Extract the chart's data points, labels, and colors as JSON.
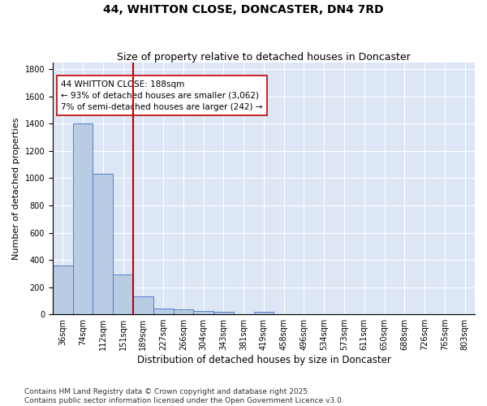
{
  "title": "44, WHITTON CLOSE, DONCASTER, DN4 7RD",
  "subtitle": "Size of property relative to detached houses in Doncaster",
  "xlabel": "Distribution of detached houses by size in Doncaster",
  "ylabel": "Number of detached properties",
  "categories": [
    "36sqm",
    "74sqm",
    "112sqm",
    "151sqm",
    "189sqm",
    "227sqm",
    "266sqm",
    "304sqm",
    "343sqm",
    "381sqm",
    "419sqm",
    "458sqm",
    "496sqm",
    "534sqm",
    "573sqm",
    "611sqm",
    "650sqm",
    "688sqm",
    "726sqm",
    "765sqm",
    "803sqm"
  ],
  "values": [
    360,
    1400,
    1035,
    290,
    130,
    45,
    35,
    25,
    18,
    0,
    20,
    0,
    0,
    0,
    0,
    0,
    0,
    0,
    0,
    0,
    0
  ],
  "bar_color": "#b8cce4",
  "bar_edge_color": "#4472c4",
  "property_line_index": 4,
  "property_line_color": "#c00000",
  "annotation_line1": "44 WHITTON CLOSE: 188sqm",
  "annotation_line2": "← 93% of detached houses are smaller (3,062)",
  "annotation_line3": "7% of semi-detached houses are larger (242) →",
  "annotation_box_color": "#c00000",
  "ylim": [
    0,
    1850
  ],
  "yticks": [
    0,
    200,
    400,
    600,
    800,
    1000,
    1200,
    1400,
    1600,
    1800
  ],
  "background_color": "#dce6f5",
  "grid_color": "#ffffff",
  "footer_text": "Contains HM Land Registry data © Crown copyright and database right 2025.\nContains public sector information licensed under the Open Government Licence v3.0.",
  "title_fontsize": 10,
  "subtitle_fontsize": 9,
  "xlabel_fontsize": 8.5,
  "ylabel_fontsize": 8,
  "tick_fontsize": 7,
  "annotation_fontsize": 7.5,
  "footer_fontsize": 6.5
}
